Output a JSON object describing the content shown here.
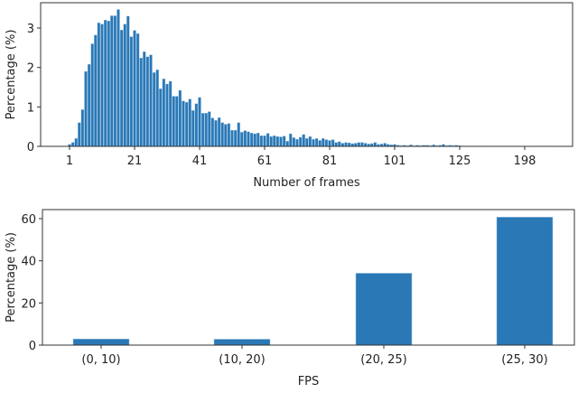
{
  "chart_data": [
    {
      "type": "bar",
      "xlabel": "Number of frames",
      "ylabel": "Percentage (%)",
      "ylim": [
        0,
        3.6
      ],
      "yticks": [
        0,
        1,
        2,
        3
      ],
      "xtick_labels": [
        "1",
        "21",
        "41",
        "61",
        "81",
        "101",
        "125",
        "198"
      ],
      "xtick_category_index": [
        0,
        20,
        40,
        60,
        80,
        100,
        120,
        140
      ],
      "color": "#2a78b6",
      "values": [
        0.05,
        0.1,
        0.2,
        0.6,
        0.93,
        1.9,
        2.08,
        2.6,
        2.82,
        3.13,
        3.1,
        3.2,
        3.18,
        3.31,
        3.31,
        3.47,
        2.95,
        3.1,
        3.3,
        2.78,
        2.94,
        2.86,
        2.24,
        2.4,
        2.27,
        2.32,
        1.87,
        1.94,
        1.46,
        1.71,
        1.58,
        1.65,
        1.27,
        1.27,
        1.42,
        1.15,
        1.12,
        1.2,
        0.91,
        1.08,
        1.24,
        0.84,
        0.84,
        0.88,
        0.72,
        0.66,
        0.73,
        0.6,
        0.56,
        0.58,
        0.41,
        0.41,
        0.6,
        0.36,
        0.4,
        0.37,
        0.34,
        0.32,
        0.34,
        0.27,
        0.27,
        0.33,
        0.25,
        0.27,
        0.25,
        0.24,
        0.26,
        0.13,
        0.32,
        0.22,
        0.18,
        0.23,
        0.3,
        0.2,
        0.25,
        0.18,
        0.2,
        0.15,
        0.2,
        0.17,
        0.15,
        0.17,
        0.1,
        0.12,
        0.08,
        0.1,
        0.09,
        0.07,
        0.08,
        0.1,
        0.1,
        0.08,
        0.06,
        0.07,
        0.1,
        0.05,
        0.06,
        0.08,
        0.05,
        0.04,
        0.05,
        0.03,
        0.02,
        0.03,
        0.02,
        0.04,
        0.02,
        0.03,
        0.02,
        0.03,
        0.03,
        0.02,
        0.04,
        0.02,
        0.03,
        0.05,
        0.02,
        0.03,
        0.02,
        0.03,
        0.02,
        0.01,
        0.0,
        0.01,
        0.01,
        0.0,
        0.01,
        0.0,
        0.01,
        0.0,
        0.0,
        0.01,
        0.0,
        0.0,
        0.01,
        0.0,
        0.0,
        0.01,
        0.0,
        0.0,
        0.01,
        0.0,
        0.0,
        0.0,
        0.01,
        0.0,
        0.0,
        0.01
      ]
    },
    {
      "type": "bar",
      "xlabel": "FPS",
      "ylabel": "Percentage (%)",
      "ylim": [
        0,
        64
      ],
      "yticks": [
        0,
        20,
        40,
        60
      ],
      "categories": [
        "(0, 10)",
        "(10, 20)",
        "(20, 25)",
        "(25, 30)"
      ],
      "values": [
        2.9,
        2.8,
        34.1,
        60.7
      ],
      "color": "#2a78b6"
    }
  ]
}
